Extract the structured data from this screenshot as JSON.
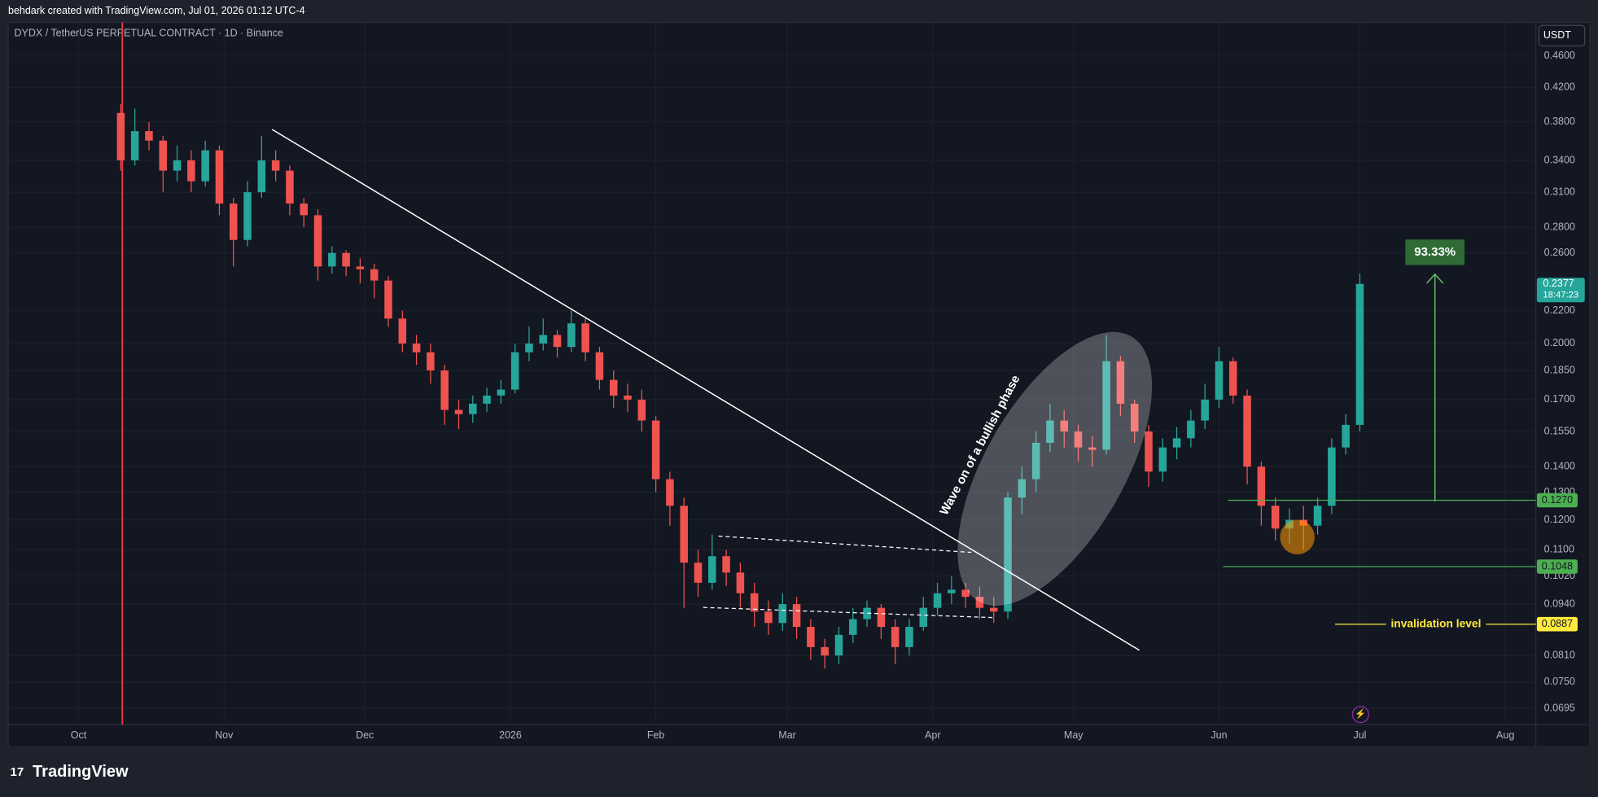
{
  "header": {
    "attribution": "behdark created with TradingView.com, Jul 01, 2026 01:12 UTC-4",
    "symbol": "DYDX / TetherUS PERPETUAL CONTRACT · 1D · Binance",
    "currency": "USDT",
    "logo": "TradingView"
  },
  "chart_data": {
    "type": "candlestick",
    "log_scale": true,
    "up_color": "#26a69a",
    "down_color": "#ef5350",
    "grid": true,
    "x": [
      9,
      12,
      15,
      18,
      21,
      24,
      27,
      30,
      33,
      36,
      39,
      42,
      45,
      48,
      51,
      54,
      57,
      60,
      63,
      66,
      69,
      72,
      75,
      78,
      81,
      84,
      87,
      90,
      93,
      96,
      99,
      102,
      105,
      108,
      111,
      114,
      117,
      120,
      123,
      126,
      129,
      132,
      135,
      138,
      141,
      144,
      147,
      150,
      153,
      156,
      159,
      162,
      165,
      168,
      171,
      174,
      177,
      180,
      183,
      186,
      189,
      192,
      195,
      198,
      201,
      204,
      207,
      210,
      213,
      216,
      219,
      222,
      225,
      228,
      231,
      234,
      237,
      240,
      243,
      246,
      249,
      252,
      255,
      258,
      261,
      264,
      267,
      270,
      273
    ],
    "open": [
      0.39,
      0.34,
      0.37,
      0.36,
      0.33,
      0.34,
      0.32,
      0.35,
      0.3,
      0.27,
      0.31,
      0.34,
      0.33,
      0.3,
      0.29,
      0.25,
      0.26,
      0.25,
      0.248,
      0.24,
      0.215,
      0.2,
      0.195,
      0.185,
      0.165,
      0.163,
      0.168,
      0.172,
      0.175,
      0.195,
      0.2,
      0.205,
      0.198,
      0.212,
      0.195,
      0.18,
      0.172,
      0.17,
      0.16,
      0.135,
      0.125,
      0.106,
      0.1,
      0.108,
      0.103,
      0.097,
      0.092,
      0.089,
      0.094,
      0.088,
      0.083,
      0.081,
      0.086,
      0.09,
      0.093,
      0.088,
      0.083,
      0.088,
      0.093,
      0.097,
      0.098,
      0.096,
      0.093,
      0.092,
      0.128,
      0.135,
      0.15,
      0.16,
      0.155,
      0.148,
      0.147,
      0.19,
      0.168,
      0.155,
      0.138,
      0.148,
      0.152,
      0.16,
      0.17,
      0.19,
      0.172,
      0.14,
      0.125,
      0.117,
      0.12,
      0.118,
      0.125,
      0.148,
      0.158
    ],
    "high": [
      0.4,
      0.395,
      0.38,
      0.365,
      0.355,
      0.35,
      0.36,
      0.355,
      0.305,
      0.32,
      0.365,
      0.35,
      0.335,
      0.305,
      0.295,
      0.265,
      0.262,
      0.256,
      0.252,
      0.243,
      0.22,
      0.205,
      0.2,
      0.188,
      0.17,
      0.172,
      0.176,
      0.18,
      0.2,
      0.21,
      0.215,
      0.208,
      0.22,
      0.215,
      0.198,
      0.185,
      0.178,
      0.175,
      0.162,
      0.138,
      0.128,
      0.11,
      0.115,
      0.11,
      0.106,
      0.1,
      0.095,
      0.097,
      0.096,
      0.09,
      0.085,
      0.088,
      0.093,
      0.095,
      0.094,
      0.09,
      0.09,
      0.096,
      0.1,
      0.102,
      0.1,
      0.099,
      0.096,
      0.13,
      0.14,
      0.155,
      0.168,
      0.165,
      0.158,
      0.153,
      0.205,
      0.193,
      0.17,
      0.158,
      0.152,
      0.157,
      0.165,
      0.178,
      0.198,
      0.192,
      0.175,
      0.142,
      0.128,
      0.124,
      0.125,
      0.128,
      0.152,
      0.163,
      0.245
    ],
    "low": [
      0.33,
      0.335,
      0.35,
      0.31,
      0.32,
      0.31,
      0.315,
      0.29,
      0.25,
      0.265,
      0.305,
      0.32,
      0.29,
      0.28,
      0.24,
      0.245,
      0.243,
      0.238,
      0.228,
      0.21,
      0.195,
      0.188,
      0.178,
      0.158,
      0.156,
      0.159,
      0.164,
      0.168,
      0.173,
      0.19,
      0.196,
      0.192,
      0.195,
      0.19,
      0.175,
      0.166,
      0.164,
      0.155,
      0.13,
      0.118,
      0.093,
      0.096,
      0.098,
      0.099,
      0.093,
      0.088,
      0.086,
      0.087,
      0.085,
      0.08,
      0.078,
      0.079,
      0.084,
      0.088,
      0.085,
      0.079,
      0.081,
      0.087,
      0.091,
      0.094,
      0.093,
      0.09,
      0.089,
      0.09,
      0.122,
      0.13,
      0.146,
      0.148,
      0.142,
      0.14,
      0.145,
      0.162,
      0.15,
      0.132,
      0.134,
      0.143,
      0.148,
      0.156,
      0.166,
      0.168,
      0.133,
      0.118,
      0.113,
      0.112,
      0.11,
      0.115,
      0.122,
      0.145,
      0.155
    ],
    "close": [
      0.34,
      0.37,
      0.36,
      0.33,
      0.34,
      0.32,
      0.35,
      0.3,
      0.27,
      0.31,
      0.34,
      0.33,
      0.3,
      0.29,
      0.25,
      0.26,
      0.25,
      0.248,
      0.24,
      0.215,
      0.2,
      0.195,
      0.185,
      0.165,
      0.163,
      0.168,
      0.172,
      0.175,
      0.195,
      0.2,
      0.205,
      0.198,
      0.212,
      0.195,
      0.18,
      0.172,
      0.17,
      0.16,
      0.135,
      0.125,
      0.106,
      0.1,
      0.108,
      0.103,
      0.097,
      0.092,
      0.089,
      0.094,
      0.088,
      0.083,
      0.081,
      0.086,
      0.09,
      0.093,
      0.088,
      0.083,
      0.088,
      0.093,
      0.097,
      0.098,
      0.096,
      0.093,
      0.092,
      0.128,
      0.135,
      0.15,
      0.16,
      0.155,
      0.148,
      0.147,
      0.19,
      0.168,
      0.155,
      0.138,
      0.148,
      0.152,
      0.16,
      0.17,
      0.19,
      0.172,
      0.14,
      0.125,
      0.117,
      0.12,
      0.118,
      0.125,
      0.148,
      0.158,
      0.2377
    ],
    "xlim": [
      -15,
      310.5
    ],
    "xticks": [
      {
        "value": 0,
        "label": "Oct"
      },
      {
        "value": 31,
        "label": "Nov"
      },
      {
        "value": 61,
        "label": "Dec"
      },
      {
        "value": 92,
        "label": "2026"
      },
      {
        "value": 123,
        "label": "Feb"
      },
      {
        "value": 151,
        "label": "Mar"
      },
      {
        "value": 182,
        "label": "Apr"
      },
      {
        "value": 212,
        "label": "May"
      },
      {
        "value": 243,
        "label": "Jun"
      },
      {
        "value": 273,
        "label": "Jul"
      },
      {
        "value": 304,
        "label": "Aug"
      }
    ],
    "ylim": [
      0.0663,
      0.507
    ],
    "yticks": [
      {
        "value": 0.46,
        "label": "0.4600"
      },
      {
        "value": 0.42,
        "label": "0.4200"
      },
      {
        "value": 0.38,
        "label": "0.3800"
      },
      {
        "value": 0.34,
        "label": "0.3400"
      },
      {
        "value": 0.31,
        "label": "0.3100"
      },
      {
        "value": 0.28,
        "label": "0.2800"
      },
      {
        "value": 0.26,
        "label": "0.2600"
      },
      {
        "value": 0.22,
        "label": "0.2200"
      },
      {
        "value": 0.2,
        "label": "0.2000"
      },
      {
        "value": 0.185,
        "label": "0.1850"
      },
      {
        "value": 0.17,
        "label": "0.1700"
      },
      {
        "value": 0.155,
        "label": "0.1550"
      },
      {
        "value": 0.14,
        "label": "0.1400"
      },
      {
        "value": 0.13,
        "label": "0.1300"
      },
      {
        "value": 0.12,
        "label": "0.1200"
      },
      {
        "value": 0.11,
        "label": "0.1100"
      },
      {
        "value": 0.102,
        "label": "0.1020"
      },
      {
        "value": 0.094,
        "label": "0.0940"
      },
      {
        "value": 0.081,
        "label": "0.0810"
      },
      {
        "value": 0.075,
        "label": "0.0750"
      },
      {
        "value": 0.0695,
        "label": "0.0695"
      }
    ],
    "levels": [
      {
        "value": 0.127,
        "label": "0.1270",
        "color": "#4caf50"
      },
      {
        "value": 0.1048,
        "label": "0.1048",
        "color": "#4caf50"
      },
      {
        "value": 0.0887,
        "label": "0.0887",
        "color": "#ffeb3b",
        "note": "invalidation level"
      }
    ],
    "last_price": {
      "value": 0.2377,
      "label": "0.2377",
      "countdown": "18:47:23"
    },
    "target_label": "93.33%",
    "wave_label": "Wave on of a bullish phase"
  }
}
